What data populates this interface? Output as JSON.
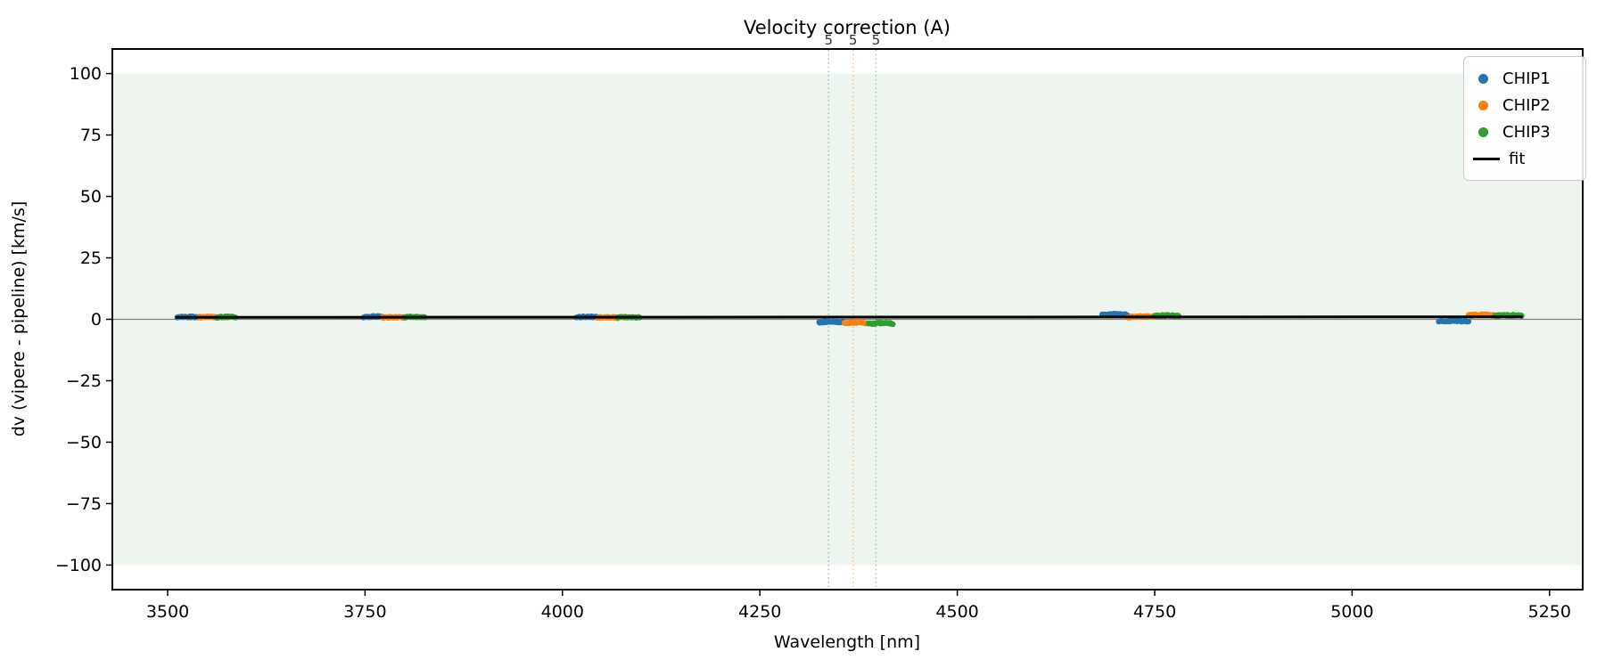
{
  "figure": {
    "title": "Velocity correction (A)"
  },
  "chart_data": {
    "type": "scatter",
    "title": "Velocity correction (A)",
    "xlabel": "Wavelength [nm]",
    "ylabel": "dv (vipere - pipeline) [km/s]",
    "xlim": [
      3430,
      5292
    ],
    "ylim": [
      -110,
      110
    ],
    "xticks": [
      {
        "v": 3500,
        "label": "3500"
      },
      {
        "v": 3750,
        "label": "3750"
      },
      {
        "v": 4000,
        "label": "4000"
      },
      {
        "v": 4250,
        "label": "4250"
      },
      {
        "v": 4500,
        "label": "4500"
      },
      {
        "v": 4750,
        "label": "4750"
      },
      {
        "v": 5000,
        "label": "5000"
      },
      {
        "v": 5250,
        "label": "5250"
      }
    ],
    "yticks": [
      {
        "v": 100,
        "label": "100"
      },
      {
        "v": 75,
        "label": "75"
      },
      {
        "v": 50,
        "label": "50"
      },
      {
        "v": 25,
        "label": "25"
      },
      {
        "v": 0,
        "label": "0"
      },
      {
        "v": -25,
        "label": "−25"
      },
      {
        "v": -50,
        "label": "−50"
      },
      {
        "v": -75,
        "label": "−75"
      },
      {
        "v": -100,
        "label": "−100"
      }
    ],
    "background_band": {
      "ymin": -100,
      "ymax": 100,
      "color": "#edf5ee"
    },
    "zero_line": {
      "y": 0,
      "color": "#7f7f7f"
    },
    "frame_color": "#000000",
    "series": [
      {
        "name": "CHIP1",
        "color": "#1f77b4",
        "clusters": [
          {
            "x0": 3512,
            "x1": 3540,
            "dv": 0.8
          },
          {
            "x0": 3748,
            "x1": 3772,
            "dv": 0.9
          },
          {
            "x0": 4018,
            "x1": 4044,
            "dv": 0.8
          },
          {
            "x0": 4325,
            "x1": 4356,
            "dv": -1.2
          },
          {
            "x0": 4684,
            "x1": 4716,
            "dv": 1.8
          },
          {
            "x0": 5110,
            "x1": 5147,
            "dv": -0.9
          }
        ]
      },
      {
        "name": "CHIP2",
        "color": "#ff7f0e",
        "clusters": [
          {
            "x0": 3540,
            "x1": 3562,
            "dv": 0.7
          },
          {
            "x0": 3772,
            "x1": 3800,
            "dv": 0.6
          },
          {
            "x0": 4044,
            "x1": 4070,
            "dv": 0.6
          },
          {
            "x0": 4357,
            "x1": 4385,
            "dv": -1.5
          },
          {
            "x0": 4716,
            "x1": 4750,
            "dv": 0.9
          },
          {
            "x0": 5147,
            "x1": 5181,
            "dv": 1.6
          }
        ]
      },
      {
        "name": "CHIP3",
        "color": "#2ca02c",
        "clusters": [
          {
            "x0": 3562,
            "x1": 3586,
            "dv": 0.8
          },
          {
            "x0": 3800,
            "x1": 3826,
            "dv": 0.8
          },
          {
            "x0": 4070,
            "x1": 4097,
            "dv": 0.7
          },
          {
            "x0": 4388,
            "x1": 4419,
            "dv": -1.8
          },
          {
            "x0": 4750,
            "x1": 4780,
            "dv": 1.3
          },
          {
            "x0": 5181,
            "x1": 5215,
            "dv": 1.4
          }
        ]
      }
    ],
    "fit": {
      "label": "fit",
      "color": "#000000",
      "x0": 3510,
      "x1": 5216,
      "y0": 0.8,
      "y1": 1.0
    },
    "vlines": [
      {
        "x": 4337,
        "label": "5",
        "color": "#1f77b4"
      },
      {
        "x": 4368,
        "label": "5",
        "color": "#ff7f0e"
      },
      {
        "x": 4397,
        "label": "5",
        "color": "#2ca02c"
      }
    ],
    "legend": {
      "position": "upper right",
      "entries": [
        {
          "label": "CHIP1",
          "color": "#1f77b4",
          "marker": "dot"
        },
        {
          "label": "CHIP2",
          "color": "#ff7f0e",
          "marker": "dot"
        },
        {
          "label": "CHIP3",
          "color": "#2ca02c",
          "marker": "dot"
        },
        {
          "label": "fit",
          "color": "#000000",
          "marker": "line"
        }
      ]
    }
  }
}
